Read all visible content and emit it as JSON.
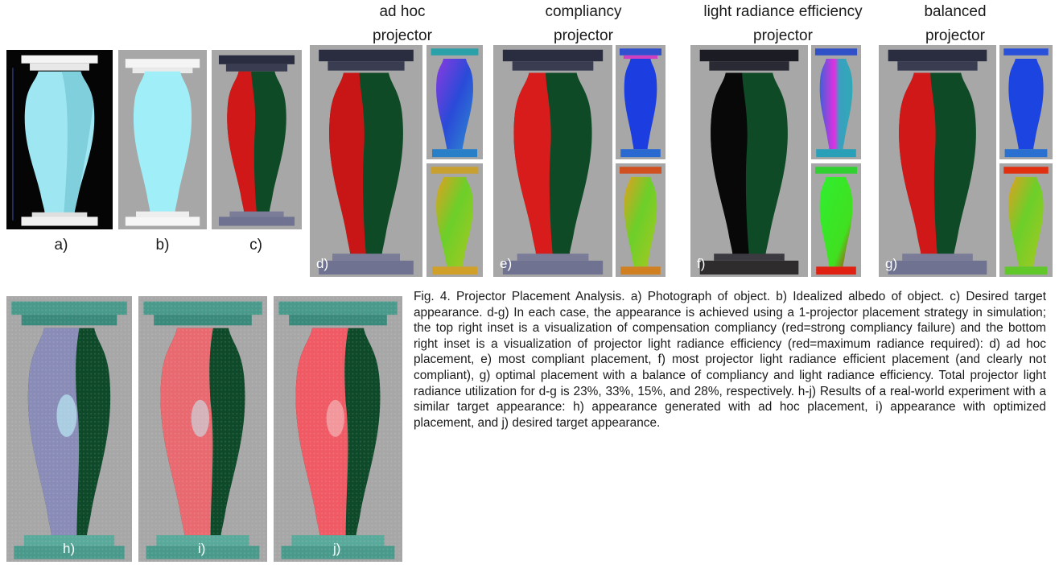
{
  "column_titles": {
    "d": [
      "ad hoc",
      "projector"
    ],
    "e": [
      "compliancy",
      "projector"
    ],
    "f": [
      "light radiance efficiency",
      "projector"
    ],
    "g": [
      "balanced",
      "projector"
    ]
  },
  "panel_labels": {
    "a": "a)",
    "b": "b)",
    "c": "c)",
    "d": "d)",
    "e": "e)",
    "f": "f)",
    "g": "g)",
    "h": "h)",
    "i": "i)",
    "j": "j)"
  },
  "caption": "Fig. 4. Projector Placement Analysis. a) Photograph of object. b) Idealized albedo of object. c) Desired target appearance. d-g) In each case, the appearance is achieved using a 1-projector placement strategy in simulation; the top right inset is a visualization of compensation compliancy (red=strong compliancy failure) and the bottom right inset is a visualization of projector light radiance efficiency (red=maximum radiance required): d) ad hoc placement, e) most compliant placement, f) most projector light radiance efficient placement (and clearly not compliant), g) optimal placement with a balance of compliancy and light radiance efficiency. Total projector light radiance utilization for d-g is 23%, 33%, 15%, and 28%, respectively. h-j) Results of a real-world experiment with a similar target appearance: h) appearance generated with ad hoc placement, i) appearance with optimized placement, and j) desired target appearance.",
  "colors": {
    "panel_bg": "#a7a7a7",
    "photo_bg": "#050505",
    "red": "#d01818",
    "green": "#0f4a26",
    "cyan": "#9ee6f2",
    "base": "#6f7290",
    "inset_blue": "#2a4ad8",
    "inset_green": "#5acc28"
  }
}
